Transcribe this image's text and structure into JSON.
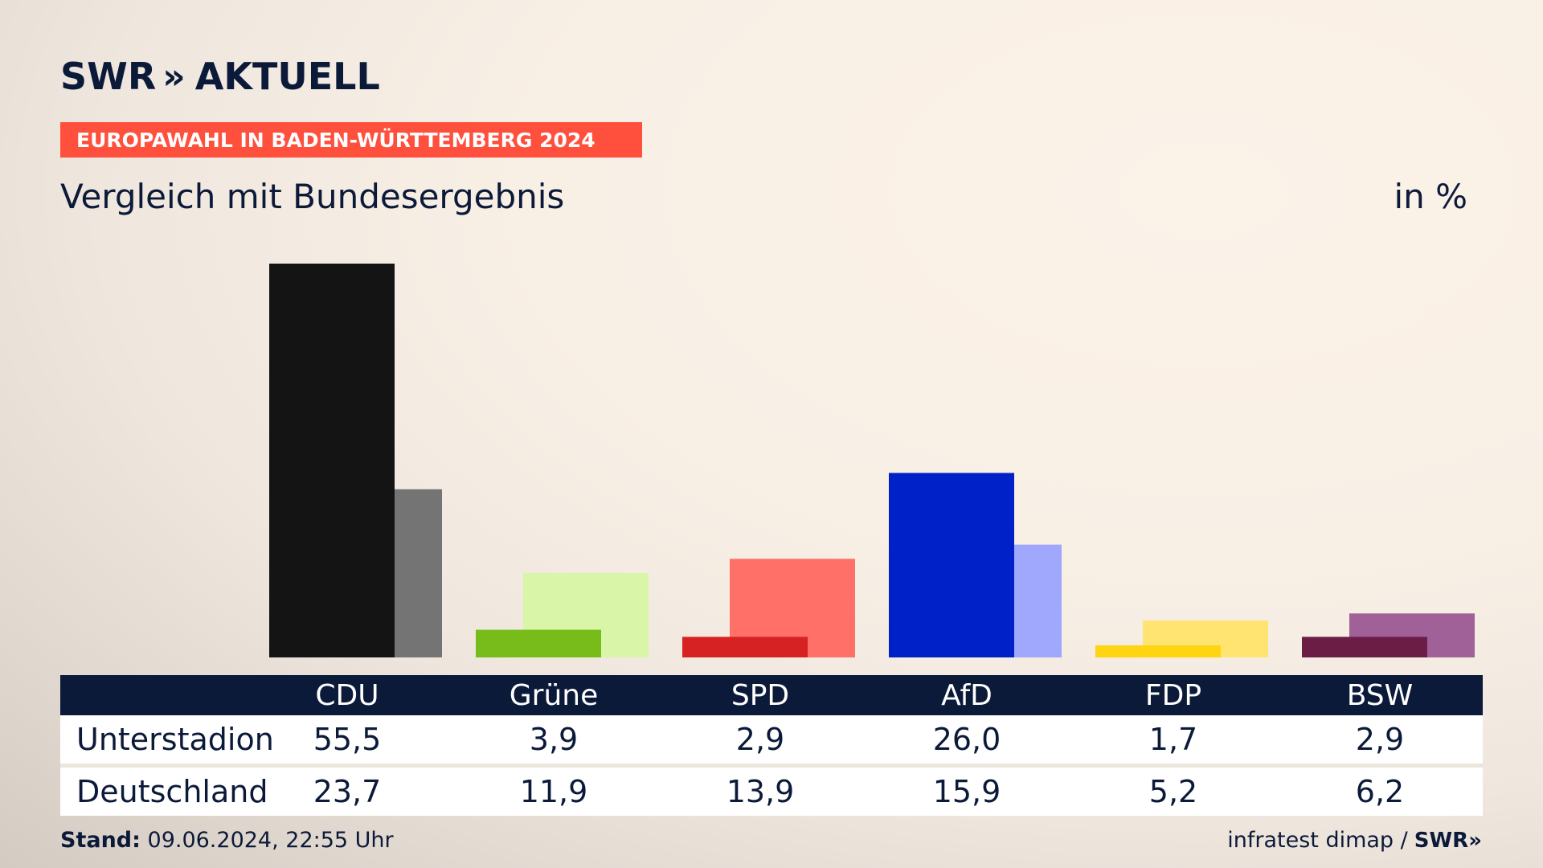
{
  "brand": {
    "name": "SWR",
    "chevrons": "»",
    "suffix": "AKTUELL"
  },
  "banner": "EUROPAWAHL IN BADEN-WÜRTTEMBERG 2024",
  "subtitle": "Vergleich mit Bundesergebnis",
  "unit": "in %",
  "footer": {
    "stand_label": "Stand:",
    "stand_value": "09.06.2024, 22:55 Uhr",
    "source": "infratest dimap /",
    "logo": "SWR»"
  },
  "chart_data": {
    "type": "bar",
    "categories": [
      "CDU",
      "Grüne",
      "SPD",
      "AfD",
      "FDP",
      "BSW"
    ],
    "series": [
      {
        "name": "Unterstadion",
        "values": [
          55.5,
          3.9,
          2.9,
          26.0,
          1.7,
          2.9
        ]
      },
      {
        "name": "Deutschland",
        "values": [
          23.7,
          11.9,
          13.9,
          15.9,
          5.2,
          6.2
        ]
      }
    ],
    "ylim": [
      0,
      55.5
    ],
    "colors_primary": [
      "#141414",
      "#78bc1c",
      "#d62222",
      "#0021c8",
      "#ffd410",
      "#6b1d46"
    ],
    "colors_secondary": [
      "#747474",
      "#d8f5a8",
      "#ff7068",
      "#9fa8fc",
      "#ffe472",
      "#a06098"
    ],
    "grid": false
  },
  "table": {
    "rows": [
      {
        "label": "Unterstadion",
        "values": [
          "55,5",
          "3,9",
          "2,9",
          "26,0",
          "1,7",
          "2,9"
        ]
      },
      {
        "label": "Deutschland",
        "values": [
          "23,7",
          "11,9",
          "13,9",
          "15,9",
          "5,2",
          "6,2"
        ]
      }
    ]
  }
}
